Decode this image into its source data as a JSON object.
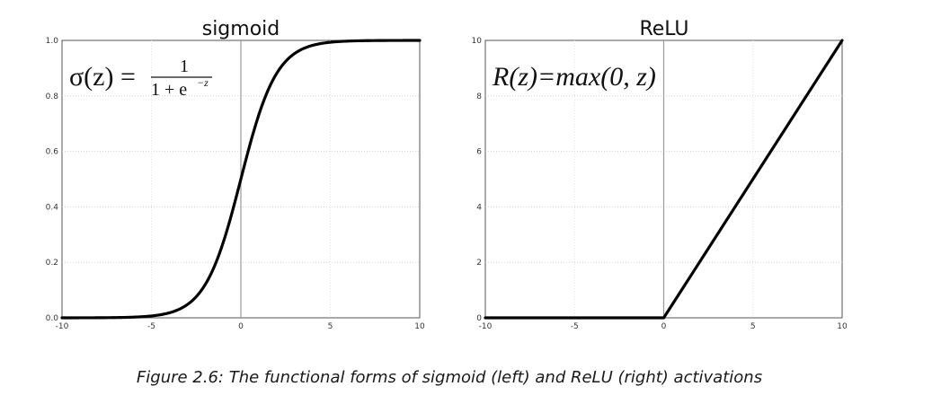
{
  "figure_caption": "Figure 2.6: The functional forms of sigmoid (left) and ReLU (right) activations",
  "chart_data": [
    {
      "type": "line",
      "title": "sigmoid",
      "xlabel": "",
      "ylabel": "",
      "xlim": [
        -10,
        10
      ],
      "ylim": [
        0.0,
        1.0
      ],
      "xticks": [
        -10,
        -5,
        0,
        5,
        10
      ],
      "yticks": [
        0.0,
        0.2,
        0.4,
        0.6,
        0.8,
        1.0
      ],
      "xtick_labels": [
        "-10",
        "-5",
        "0",
        "5",
        "10"
      ],
      "ytick_labels": [
        "0.0",
        "0.2",
        "0.4",
        "0.6",
        "0.8",
        "1.0"
      ],
      "grid": true,
      "annotation": {
        "lhs": "σ(z) =",
        "numerator": "1",
        "denominator": "1 + e",
        "exponent": "−z"
      },
      "series": [
        {
          "x": [
            -10,
            -8,
            -6,
            -5,
            -4,
            -3,
            -2,
            -1,
            0,
            1,
            2,
            3,
            4,
            5,
            6,
            8,
            10
          ],
          "y": [
            5e-05,
            0.0003,
            0.0025,
            0.0067,
            0.018,
            0.047,
            0.119,
            0.269,
            0.5,
            0.731,
            0.881,
            0.953,
            0.982,
            0.9933,
            0.9975,
            0.9997,
            0.99995
          ]
        }
      ],
      "line_color": "#000000"
    },
    {
      "type": "line",
      "title": "ReLU",
      "xlabel": "",
      "ylabel": "",
      "xlim": [
        -10,
        10
      ],
      "ylim": [
        0,
        10
      ],
      "xticks": [
        -10,
        -5,
        0,
        5,
        10
      ],
      "yticks": [
        0,
        2,
        4,
        6,
        8,
        10
      ],
      "xtick_labels": [
        "-10",
        "-5",
        "0",
        "5",
        "10"
      ],
      "ytick_labels": [
        "0",
        "2",
        "4",
        "6",
        "8",
        "10"
      ],
      "grid": true,
      "annotation": {
        "text": "R(z)=max(0, z)"
      },
      "series": [
        {
          "x": [
            -10,
            0,
            10
          ],
          "y": [
            0,
            0,
            10
          ]
        }
      ],
      "line_color": "#000000"
    }
  ]
}
